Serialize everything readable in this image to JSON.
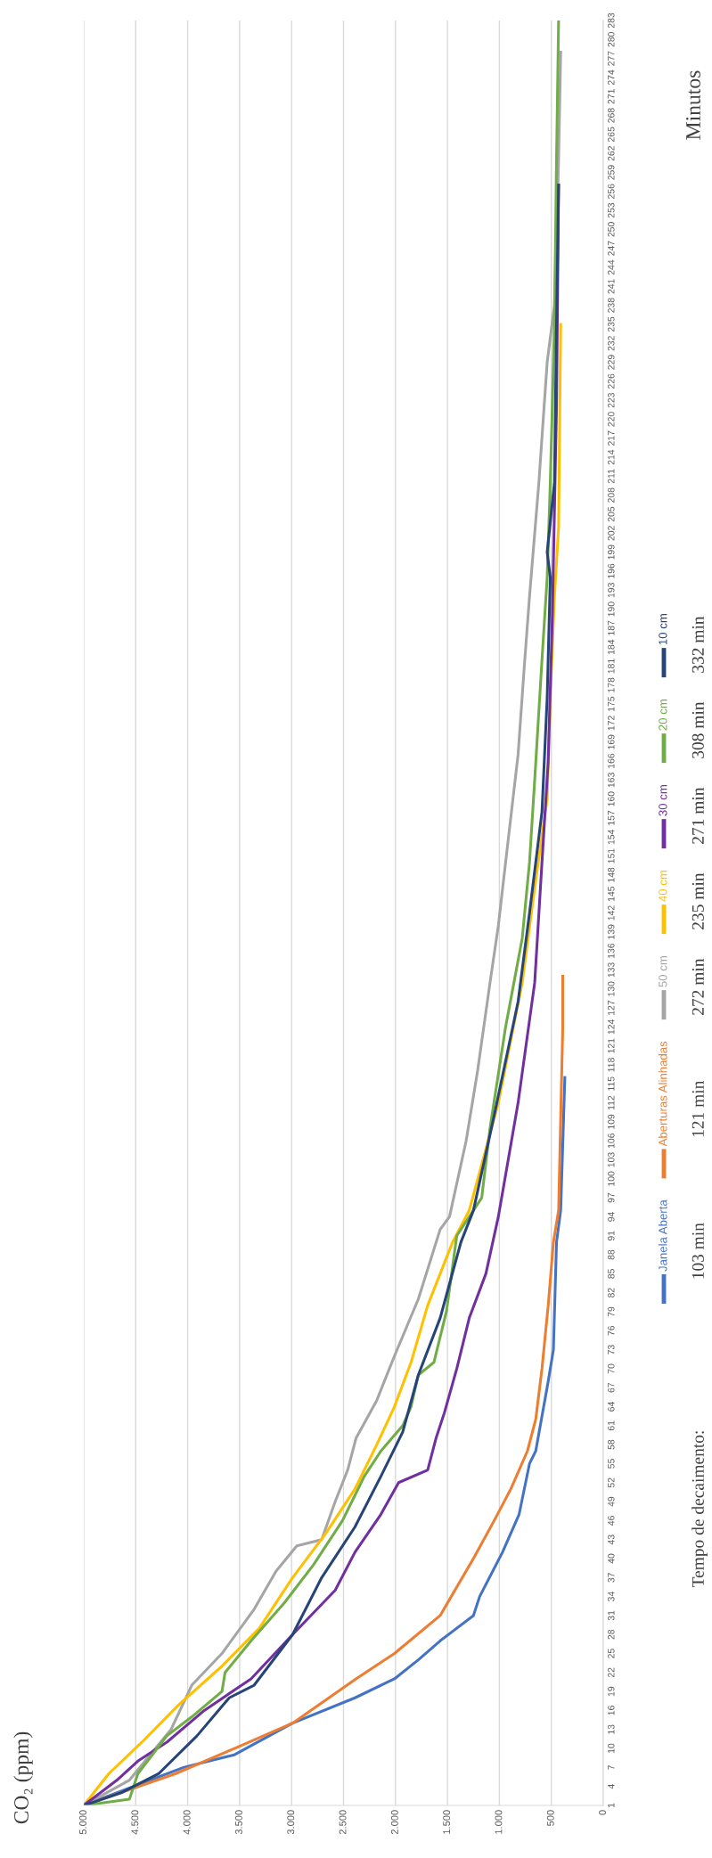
{
  "chart_data": {
    "type": "line",
    "title": "CO₂ (ppm)",
    "ylabel": "Minutos",
    "xlim": [
      5000,
      0
    ],
    "xticks": [
      {
        "value": 0,
        "label": "0"
      },
      {
        "value": 500,
        "label": "500"
      },
      {
        "value": 1000,
        "label": "1.000"
      },
      {
        "value": 1500,
        "label": "1.500"
      },
      {
        "value": 2000,
        "label": "2.000"
      },
      {
        "value": 2500,
        "label": "2.500"
      },
      {
        "value": 3000,
        "label": "3.000"
      },
      {
        "value": 3500,
        "label": "3.500"
      },
      {
        "value": 4000,
        "label": "4.000"
      },
      {
        "value": 4500,
        "label": "4.500"
      },
      {
        "value": 5000,
        "label": "5.000"
      }
    ],
    "ylim": [
      1,
      283
    ],
    "yticks": [
      1,
      4,
      7,
      10,
      13,
      16,
      19,
      22,
      25,
      28,
      31,
      34,
      37,
      40,
      43,
      46,
      49,
      52,
      55,
      58,
      61,
      64,
      67,
      70,
      73,
      76,
      79,
      82,
      85,
      88,
      91,
      94,
      97,
      100,
      103,
      106,
      109,
      112,
      115,
      118,
      121,
      124,
      127,
      130,
      133,
      136,
      139,
      142,
      145,
      148,
      151,
      154,
      157,
      160,
      163,
      166,
      169,
      172,
      175,
      178,
      181,
      184,
      187,
      190,
      193,
      196,
      199,
      202,
      205,
      208,
      211,
      214,
      217,
      220,
      223,
      226,
      229,
      232,
      235,
      238,
      241,
      244,
      247,
      250,
      253,
      256,
      259,
      262,
      265,
      268,
      271,
      274,
      277,
      280,
      283
    ],
    "grid": "x",
    "legend": "right",
    "series": [
      {
        "name": "Janela Aberta",
        "color": "#4472c4",
        "values": [
          1,
          7,
          9,
          14,
          18,
          21,
          24,
          27,
          31,
          34,
          41,
          47,
          55,
          57,
          68,
          73,
          90,
          95,
          116
        ],
        "x": [
          5000,
          4040,
          3550,
          2990,
          2390,
          2010,
          1780,
          1570,
          1250,
          1190,
          970,
          810,
          710,
          650,
          530,
          480,
          450,
          410,
          370
        ]
      },
      {
        "name": "Aberturas Alinhadas",
        "color": "#ed7d31",
        "values": [
          1,
          6,
          10,
          14,
          21,
          25,
          31,
          40,
          46,
          51,
          57,
          62,
          70,
          80,
          90,
          95,
          124,
          132
        ],
        "x": [
          5000,
          4120,
          3550,
          2990,
          2380,
          2010,
          1570,
          1250,
          1050,
          890,
          730,
          650,
          590,
          530,
          480,
          430,
          390,
          390
        ]
      },
      {
        "name": "50 cm",
        "color": "#a5a5a5",
        "values": [
          1,
          5,
          13,
          20,
          25,
          32,
          38,
          42,
          43,
          49,
          54,
          59,
          65,
          72,
          81,
          92,
          94,
          106,
          117,
          131,
          140,
          150,
          167,
          181,
          192,
          210,
          229,
          238,
          261,
          278
        ],
        "x": [
          5000,
          4560,
          4160,
          3960,
          3670,
          3360,
          3150,
          2950,
          2710,
          2580,
          2460,
          2380,
          2180,
          2010,
          1780,
          1570,
          1480,
          1320,
          1210,
          1090,
          1010,
          940,
          820,
          760,
          710,
          620,
          540,
          470,
          430,
          410
        ]
      },
      {
        "name": "40 cm",
        "color": "#ffc000",
        "values": [
          1,
          6,
          11,
          17,
          23,
          29,
          37,
          44,
          51,
          58,
          64,
          71,
          80,
          90,
          95,
          112,
          131,
          146,
          160,
          176,
          192,
          203,
          235
        ],
        "x": [
          5000,
          4760,
          4440,
          4080,
          3670,
          3310,
          2990,
          2670,
          2390,
          2180,
          2010,
          1850,
          1690,
          1450,
          1290,
          1010,
          780,
          660,
          540,
          510,
          470,
          430,
          410
        ]
      },
      {
        "name": "30 cm",
        "color": "#7030a0",
        "values": [
          1,
          5,
          8,
          11,
          16,
          21,
          28,
          35,
          41,
          47,
          52,
          54,
          59,
          63,
          70,
          78,
          85,
          94,
          112,
          131,
          150,
          166,
          189,
          222,
          257
        ],
        "x": [
          5000,
          4680,
          4480,
          4200,
          3840,
          3390,
          2990,
          2580,
          2390,
          2140,
          1970,
          1690,
          1610,
          1530,
          1410,
          1290,
          1130,
          1010,
          820,
          660,
          590,
          530,
          490,
          450,
          430
        ]
      },
      {
        "name": "20 cm",
        "color": "#70ad47",
        "values": [
          1,
          2,
          6,
          12,
          15,
          19,
          22,
          27,
          33,
          39,
          46,
          50,
          53,
          57,
          61,
          64,
          69,
          71,
          79,
          91,
          97,
          108,
          124,
          138,
          150,
          163,
          182,
          195,
          210,
          235,
          261,
          283
        ],
        "x": [
          5000,
          4560,
          4480,
          4200,
          3960,
          3670,
          3640,
          3390,
          3070,
          2790,
          2510,
          2390,
          2300,
          2140,
          1930,
          1850,
          1780,
          1630,
          1510,
          1410,
          1170,
          1090,
          940,
          780,
          710,
          660,
          590,
          540,
          510,
          470,
          450,
          430
        ]
      },
      {
        "name": "10 cm",
        "color": "#264478",
        "values": [
          1,
          3,
          6,
          12,
          18,
          20,
          28,
          37,
          45,
          53,
          60,
          69,
          78,
          90,
          95,
          110,
          128,
          142,
          158,
          176,
          195,
          199,
          210,
          235,
          257
        ],
        "x": [
          5000,
          4640,
          4280,
          3910,
          3600,
          3360,
          2990,
          2710,
          2390,
          2140,
          1930,
          1780,
          1570,
          1370,
          1250,
          1050,
          820,
          710,
          590,
          540,
          510,
          540,
          470,
          450,
          430
        ]
      }
    ],
    "annotations": [
      "Tempo de decaimento:",
      "103 min",
      "121 min",
      "272 min",
      "235 min",
      "271 min",
      "308 min",
      "332 min"
    ]
  }
}
